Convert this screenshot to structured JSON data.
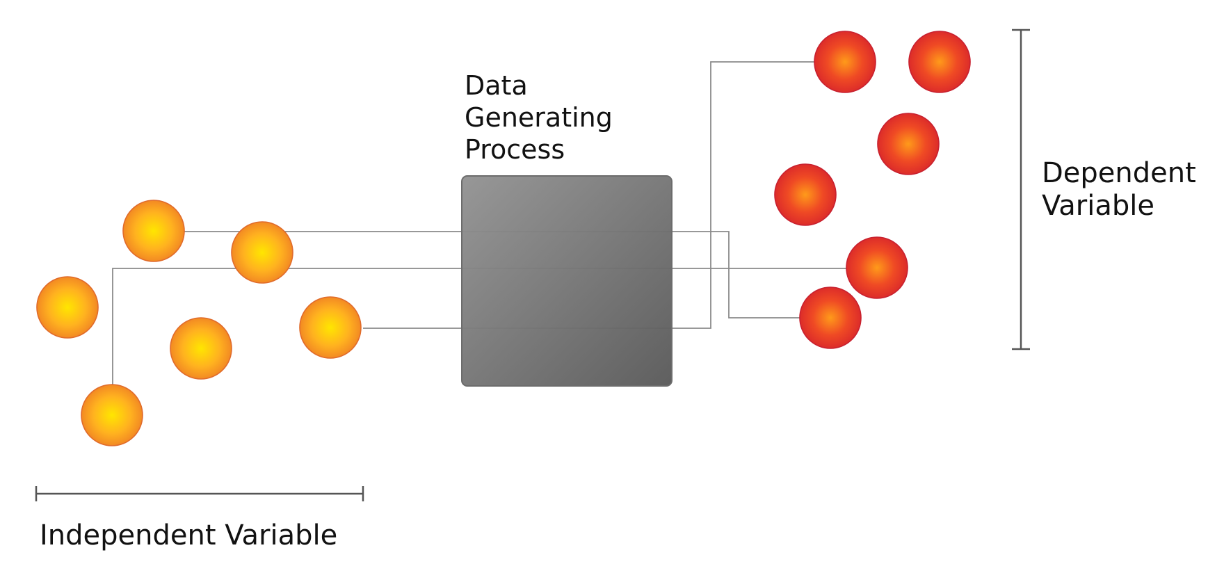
{
  "diagram": {
    "process_label_lines": [
      "Data",
      "Generating",
      "Process"
    ],
    "independent_label": "Independent Variable",
    "dependent_label_lines": [
      "Dependent",
      "Variable"
    ],
    "colors": {
      "background": "#ffffff",
      "input_center": "#ffe600",
      "input_mid": "#ffb21f",
      "input_edge": "#ef7f24",
      "input_rim": "#e06b2b",
      "output_center": "#ff9a1a",
      "output_mid": "#ef4a24",
      "output_edge": "#d8252b",
      "output_rim": "#c8212f",
      "box_light": "#939393",
      "box_dark": "#595959",
      "box_stroke": "#6c6c6c",
      "connector": "#8a8a8a",
      "bracket": "#555555",
      "text": "#111111"
    }
  }
}
